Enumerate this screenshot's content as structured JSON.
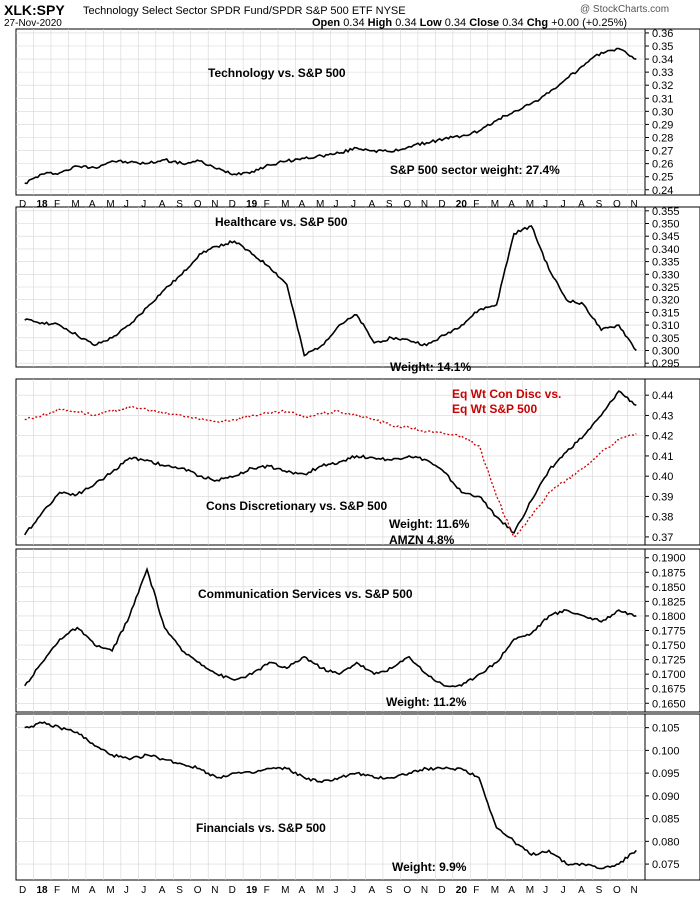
{
  "header": {
    "symbol": "XLK:SPY",
    "description": "Technology Select Sector SPDR Fund/SPDR S&P 500 ETF  NYSE",
    "date": "27-Nov-2020",
    "source": "@ StockCharts.com",
    "ohlc": {
      "open_label": "Open",
      "open": "0.34",
      "high_label": "High",
      "high": "0.34",
      "low_label": "Low",
      "low": "0.34",
      "close_label": "Close",
      "close": "0.34",
      "chg_label": "Chg",
      "chg": "+0.00 (+0.25%)"
    }
  },
  "x_axis_labels": [
    "D",
    "18",
    "F",
    "M",
    "A",
    "M",
    "J",
    "J",
    "A",
    "S",
    "O",
    "N",
    "D",
    "19",
    "F",
    "M",
    "A",
    "M",
    "J",
    "J",
    "A",
    "S",
    "O",
    "N",
    "D",
    "20",
    "F",
    "M",
    "A",
    "M",
    "J",
    "J",
    "A",
    "S",
    "O",
    "N"
  ],
  "x_axis_bold": [
    "18",
    "19",
    "20"
  ],
  "chart_data": [
    {
      "type": "line",
      "title": "Technology vs. S&P 500",
      "annotations": [
        "S&P 500 sector weight: 27.4%"
      ],
      "x": [
        "2017-12",
        "2018-01",
        "2018-02",
        "2018-03",
        "2018-04",
        "2018-05",
        "2018-06",
        "2018-07",
        "2018-08",
        "2018-09",
        "2018-10",
        "2018-11",
        "2018-12",
        "2019-01",
        "2019-02",
        "2019-03",
        "2019-04",
        "2019-05",
        "2019-06",
        "2019-07",
        "2019-08",
        "2019-09",
        "2019-10",
        "2019-11",
        "2019-12",
        "2020-01",
        "2020-02",
        "2020-03",
        "2020-04",
        "2020-05",
        "2020-06",
        "2020-07",
        "2020-08",
        "2020-09",
        "2020-10",
        "2020-11"
      ],
      "series": [
        {
          "color": "#000000",
          "values": [
            0.245,
            0.252,
            0.253,
            0.258,
            0.257,
            0.262,
            0.261,
            0.26,
            0.263,
            0.26,
            0.262,
            0.256,
            0.252,
            0.254,
            0.259,
            0.262,
            0.264,
            0.266,
            0.268,
            0.272,
            0.27,
            0.269,
            0.273,
            0.276,
            0.279,
            0.281,
            0.285,
            0.293,
            0.3,
            0.306,
            0.314,
            0.325,
            0.335,
            0.345,
            0.348,
            0.34
          ]
        }
      ],
      "ylim": [
        0.236,
        0.363
      ],
      "yticks": [
        0.24,
        0.25,
        0.26,
        0.27,
        0.28,
        0.29,
        0.3,
        0.31,
        0.32,
        0.33,
        0.34,
        0.35,
        0.36
      ]
    },
    {
      "type": "line",
      "title": "Healthcare vs. S&P 500",
      "annotations": [
        "Weight: 14.1%"
      ],
      "x": [
        "2017-12",
        "2018-01",
        "2018-02",
        "2018-03",
        "2018-04",
        "2018-05",
        "2018-06",
        "2018-07",
        "2018-08",
        "2018-09",
        "2018-10",
        "2018-11",
        "2018-12",
        "2019-01",
        "2019-02",
        "2019-03",
        "2019-04",
        "2019-05",
        "2019-06",
        "2019-07",
        "2019-08",
        "2019-09",
        "2019-10",
        "2019-11",
        "2019-12",
        "2020-01",
        "2020-02",
        "2020-03",
        "2020-04",
        "2020-05",
        "2020-06",
        "2020-07",
        "2020-08",
        "2020-09",
        "2020-10",
        "2020-11"
      ],
      "series": [
        {
          "color": "#000000",
          "values": [
            0.312,
            0.311,
            0.31,
            0.306,
            0.302,
            0.305,
            0.31,
            0.317,
            0.324,
            0.33,
            0.338,
            0.341,
            0.343,
            0.338,
            0.333,
            0.326,
            0.298,
            0.302,
            0.31,
            0.314,
            0.303,
            0.305,
            0.304,
            0.302,
            0.306,
            0.31,
            0.316,
            0.318,
            0.346,
            0.349,
            0.332,
            0.32,
            0.318,
            0.308,
            0.31,
            0.3
          ]
        }
      ],
      "ylim": [
        0.2935,
        0.3565
      ],
      "yticks": [
        0.295,
        0.3,
        0.305,
        0.31,
        0.315,
        0.32,
        0.325,
        0.33,
        0.335,
        0.34,
        0.345,
        0.35,
        0.355
      ]
    },
    {
      "type": "line",
      "title": "Cons Discretionary vs. S&P 500",
      "annotations": [
        "Weight: 11.6%",
        "AMZN 4.8%"
      ],
      "x": [
        "2017-12",
        "2018-01",
        "2018-02",
        "2018-03",
        "2018-04",
        "2018-05",
        "2018-06",
        "2018-07",
        "2018-08",
        "2018-09",
        "2018-10",
        "2018-11",
        "2018-12",
        "2019-01",
        "2019-02",
        "2019-03",
        "2019-04",
        "2019-05",
        "2019-06",
        "2019-07",
        "2019-08",
        "2019-09",
        "2019-10",
        "2019-11",
        "2019-12",
        "2020-01",
        "2020-02",
        "2020-03",
        "2020-04",
        "2020-05",
        "2020-06",
        "2020-07",
        "2020-08",
        "2020-09",
        "2020-10",
        "2020-11"
      ],
      "series": [
        {
          "color": "#000000",
          "values": [
            0.371,
            0.382,
            0.392,
            0.391,
            0.396,
            0.402,
            0.409,
            0.408,
            0.405,
            0.404,
            0.4,
            0.398,
            0.4,
            0.404,
            0.405,
            0.402,
            0.401,
            0.405,
            0.407,
            0.41,
            0.409,
            0.408,
            0.41,
            0.408,
            0.402,
            0.392,
            0.39,
            0.38,
            0.372,
            0.388,
            0.403,
            0.412,
            0.42,
            0.43,
            0.442,
            0.435
          ]
        },
        {
          "name": "Eq Wt Con Disc vs. Eq Wt S&P 500",
          "color": "#cc0000",
          "dashed": true,
          "values": [
            0.428,
            0.43,
            0.433,
            0.432,
            0.43,
            0.432,
            0.434,
            0.433,
            0.431,
            0.43,
            0.428,
            0.427,
            0.428,
            0.43,
            0.431,
            0.432,
            0.429,
            0.431,
            0.432,
            0.43,
            0.428,
            0.425,
            0.424,
            0.422,
            0.421,
            0.42,
            0.415,
            0.39,
            0.37,
            0.38,
            0.392,
            0.398,
            0.404,
            0.412,
            0.418,
            0.421
          ]
        }
      ],
      "ylim": [
        0.366,
        0.448
      ],
      "yticks": [
        0.37,
        0.38,
        0.39,
        0.4,
        0.41,
        0.42,
        0.43,
        0.44
      ]
    },
    {
      "type": "line",
      "title": "Communication Services vs. S&P 500",
      "annotations": [
        "Weight: 11.2%"
      ],
      "x": [
        "2017-12",
        "2018-01",
        "2018-02",
        "2018-03",
        "2018-04",
        "2018-05",
        "2018-06",
        "2018-07",
        "2018-08",
        "2018-09",
        "2018-10",
        "2018-11",
        "2018-12",
        "2019-01",
        "2019-02",
        "2019-03",
        "2019-04",
        "2019-05",
        "2019-06",
        "2019-07",
        "2019-08",
        "2019-09",
        "2019-10",
        "2019-11",
        "2019-12",
        "2020-01",
        "2020-02",
        "2020-03",
        "2020-04",
        "2020-05",
        "2020-06",
        "2020-07",
        "2020-08",
        "2020-09",
        "2020-10",
        "2020-11"
      ],
      "series": [
        {
          "color": "#000000",
          "values": [
            0.168,
            0.172,
            0.176,
            0.178,
            0.175,
            0.174,
            0.18,
            0.188,
            0.178,
            0.174,
            0.172,
            0.17,
            0.169,
            0.17,
            0.172,
            0.171,
            0.173,
            0.171,
            0.17,
            0.172,
            0.17,
            0.171,
            0.173,
            0.17,
            0.168,
            0.168,
            0.17,
            0.172,
            0.176,
            0.177,
            0.18,
            0.181,
            0.18,
            0.179,
            0.181,
            0.18
          ]
        }
      ],
      "ylim": [
        0.1635,
        0.1915
      ],
      "yticks": [
        0.165,
        0.1675,
        0.17,
        0.1725,
        0.175,
        0.1775,
        0.18,
        0.1825,
        0.185,
        0.1875,
        0.19
      ]
    },
    {
      "type": "line",
      "title": "Financials vs. S&P 500",
      "annotations": [
        "Weight: 9.9%"
      ],
      "x": [
        "2017-12",
        "2018-01",
        "2018-02",
        "2018-03",
        "2018-04",
        "2018-05",
        "2018-06",
        "2018-07",
        "2018-08",
        "2018-09",
        "2018-10",
        "2018-11",
        "2018-12",
        "2019-01",
        "2019-02",
        "2019-03",
        "2019-04",
        "2019-05",
        "2019-06",
        "2019-07",
        "2019-08",
        "2019-09",
        "2019-10",
        "2019-11",
        "2019-12",
        "2020-01",
        "2020-02",
        "2020-03",
        "2020-04",
        "2020-05",
        "2020-06",
        "2020-07",
        "2020-08",
        "2020-09",
        "2020-10",
        "2020-11"
      ],
      "series": [
        {
          "color": "#000000",
          "values": [
            0.105,
            0.106,
            0.105,
            0.104,
            0.101,
            0.099,
            0.098,
            0.099,
            0.098,
            0.097,
            0.096,
            0.094,
            0.095,
            0.095,
            0.096,
            0.096,
            0.094,
            0.093,
            0.094,
            0.095,
            0.094,
            0.094,
            0.095,
            0.096,
            0.096,
            0.096,
            0.094,
            0.083,
            0.08,
            0.077,
            0.078,
            0.075,
            0.075,
            0.074,
            0.075,
            0.078
          ]
        }
      ],
      "ylim": [
        0.0715,
        0.108
      ],
      "yticks": [
        0.075,
        0.08,
        0.085,
        0.09,
        0.095,
        0.1,
        0.105
      ]
    }
  ]
}
